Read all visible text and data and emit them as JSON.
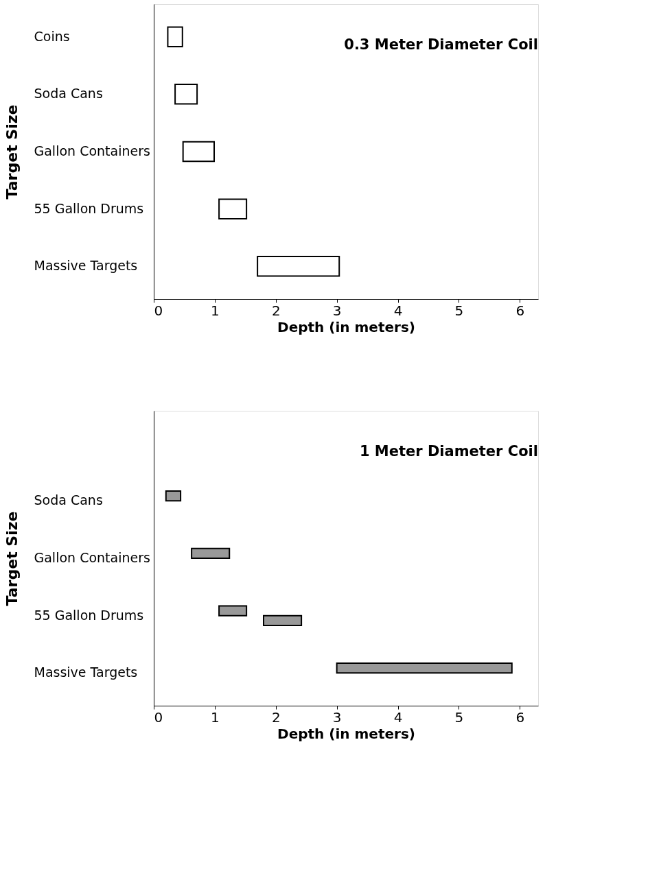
{
  "chart_data": [
    {
      "type": "bar",
      "orientation": "horizontal",
      "title": "0.3 Meter Diameter Coil",
      "xlabel": "Depth (in meters)",
      "ylabel": "Target Size",
      "categories": [
        "Coins",
        "Soda Cans",
        "Gallon Containers",
        "55 Gallon Drums",
        "Massive Targets"
      ],
      "series": [
        {
          "color": "#ffffff",
          "base": [
            0.23,
            0.35,
            0.48,
            1.07,
            1.7
          ],
          "values": [
            0.24,
            0.36,
            0.51,
            0.45,
            1.34
          ]
        }
      ],
      "xlim": [
        0,
        6.3
      ],
      "xticks": [
        0,
        1,
        2,
        3,
        4,
        5,
        6
      ],
      "grid": false,
      "legend": false
    },
    {
      "type": "bar",
      "orientation": "horizontal",
      "title": "1 Meter Diameter Coil",
      "xlabel": "Depth (in meters)",
      "ylabel": "Target Size",
      "categories": [
        null,
        "Soda Cans",
        "Gallon Containers",
        "55 Gallon Drums",
        "Massive Targets"
      ],
      "series": [
        {
          "color": "#999999",
          "base": [
            null,
            0.2,
            0.62,
            1.07,
            3.0
          ],
          "values": [
            null,
            0.24,
            0.62,
            0.45,
            2.87
          ]
        },
        {
          "color": "#999999",
          "base": [
            null,
            null,
            null,
            1.8,
            null
          ],
          "values": [
            null,
            null,
            null,
            0.62,
            null
          ]
        }
      ],
      "xlim": [
        0,
        6.3
      ],
      "xticks": [
        0,
        1,
        2,
        3,
        4,
        5,
        6
      ],
      "grid": false,
      "legend": false
    }
  ]
}
